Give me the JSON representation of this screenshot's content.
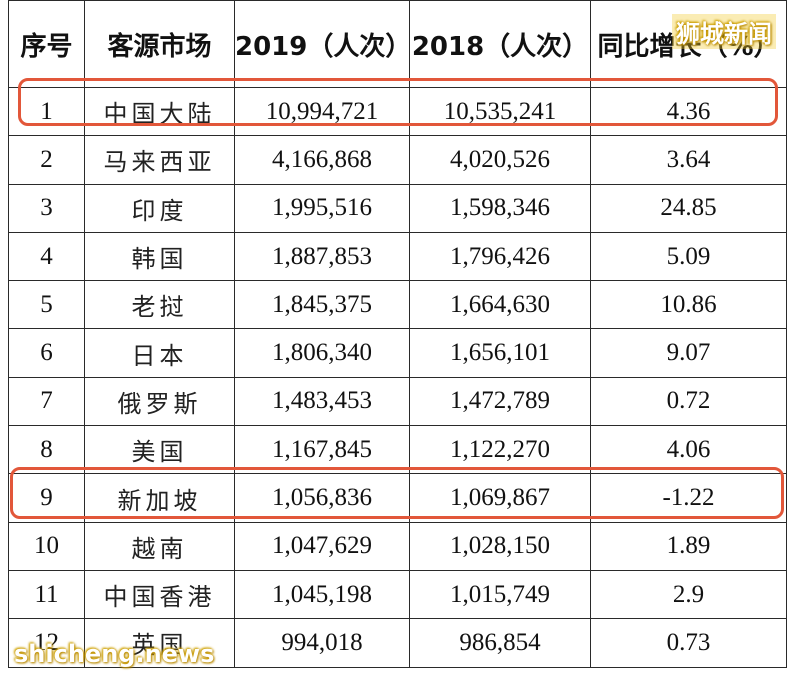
{
  "table": {
    "headers": {
      "rank": "序号",
      "market": "客源市场",
      "y2019": "2019（人次）",
      "y2018": "2018（人次）",
      "growth": "同比增长（%）"
    },
    "rows": [
      {
        "rank": "1",
        "market": "中国大陆",
        "y2019": "10,994,721",
        "y2018": "10,535,241",
        "growth": "4.36"
      },
      {
        "rank": "2",
        "market": "马来西亚",
        "y2019": "4,166,868",
        "y2018": "4,020,526",
        "growth": "3.64"
      },
      {
        "rank": "3",
        "market": "印度",
        "y2019": "1,995,516",
        "y2018": "1,598,346",
        "growth": "24.85"
      },
      {
        "rank": "4",
        "market": "韩国",
        "y2019": "1,887,853",
        "y2018": "1,796,426",
        "growth": "5.09"
      },
      {
        "rank": "5",
        "market": "老挝",
        "y2019": "1,845,375",
        "y2018": "1,664,630",
        "growth": "10.86"
      },
      {
        "rank": "6",
        "market": "日本",
        "y2019": "1,806,340",
        "y2018": "1,656,101",
        "growth": "9.07"
      },
      {
        "rank": "7",
        "market": "俄罗斯",
        "y2019": "1,483,453",
        "y2018": "1,472,789",
        "growth": "0.72"
      },
      {
        "rank": "8",
        "market": "美国",
        "y2019": "1,167,845",
        "y2018": "1,122,270",
        "growth": "4.06"
      },
      {
        "rank": "9",
        "market": "新加坡",
        "y2019": "1,056,836",
        "y2018": "1,069,867",
        "growth": "-1.22"
      },
      {
        "rank": "10",
        "market": "越南",
        "y2019": "1,047,629",
        "y2018": "1,028,150",
        "growth": "1.89"
      },
      {
        "rank": "11",
        "market": "中国香港",
        "y2019": "1,045,198",
        "y2018": "1,015,749",
        "growth": "2.9"
      },
      {
        "rank": "12",
        "market": "英国",
        "y2019": "994,018",
        "y2018": "986,854",
        "growth": "0.73"
      }
    ]
  },
  "highlight_color": "#e2573a",
  "watermarks": {
    "top": "狮城新闻",
    "bottom": "shicheng.news"
  }
}
